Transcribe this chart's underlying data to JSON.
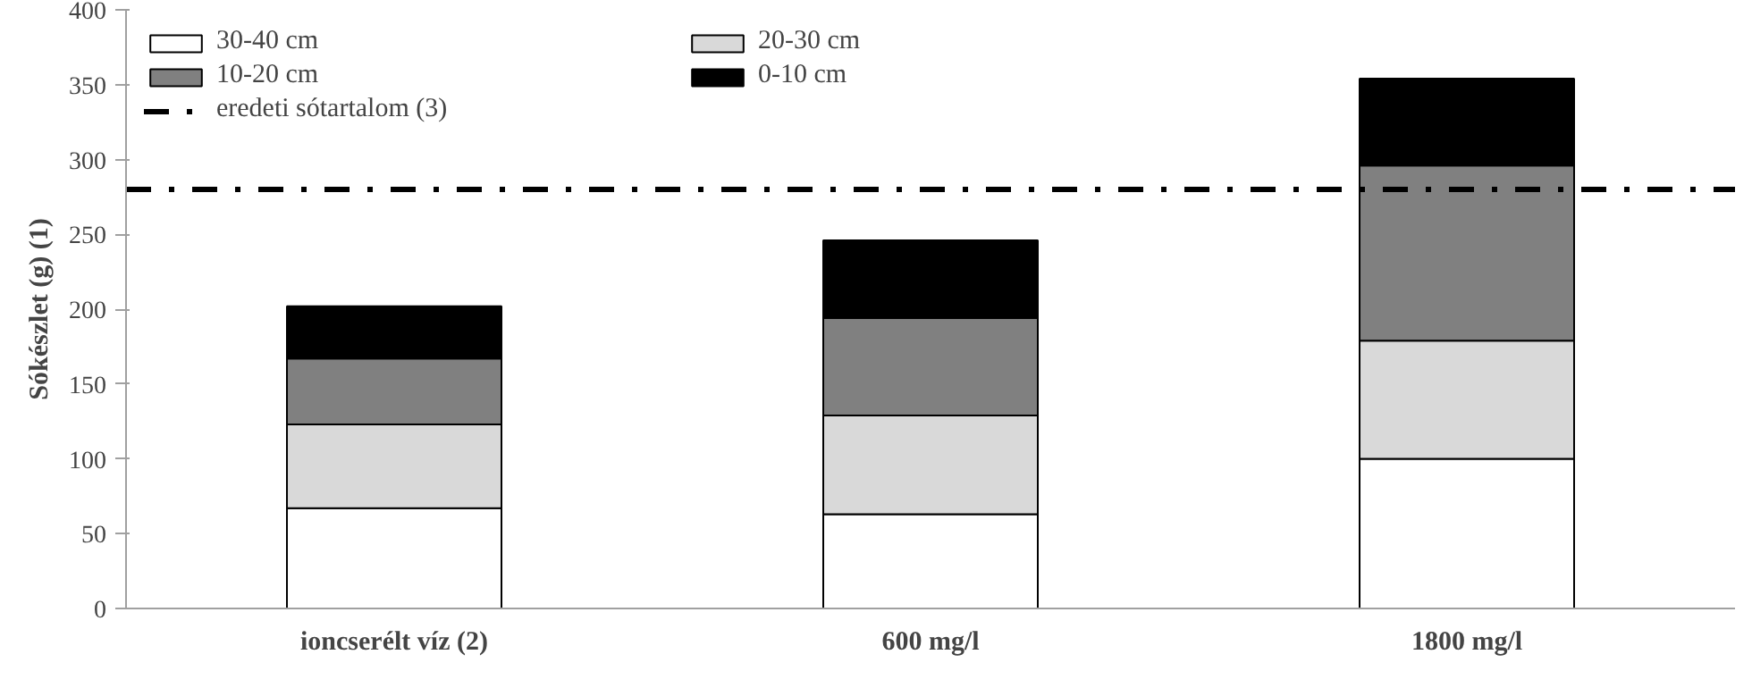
{
  "chart_data": {
    "type": "bar",
    "stacked": true,
    "ylabel": "Sókészlet (g) (1)",
    "categories": [
      "ioncserélt víz (2)",
      "600 mg/l",
      "1800 mg/l"
    ],
    "series": [
      {
        "name": "30-40 cm",
        "color": "#ffffff",
        "values": [
          67,
          63,
          100
        ]
      },
      {
        "name": "20-30 cm",
        "color": "#d9d9d9",
        "values": [
          56,
          66,
          79
        ]
      },
      {
        "name": "10-20 cm",
        "color": "#808080",
        "values": [
          44,
          65,
          117
        ]
      },
      {
        "name": "0-10 cm",
        "color": "#000000",
        "values": [
          35,
          52,
          58
        ]
      }
    ],
    "ref_lines": [
      {
        "axis": "y",
        "value": 280,
        "label": "eredeti sótartalom (3)",
        "color": "#000000",
        "line_style": "dashdot"
      }
    ],
    "ylim": [
      0,
      400
    ],
    "yticks": [
      0,
      50,
      100,
      150,
      200,
      250,
      300,
      350,
      400
    ],
    "grid": false,
    "legend": "top left"
  }
}
